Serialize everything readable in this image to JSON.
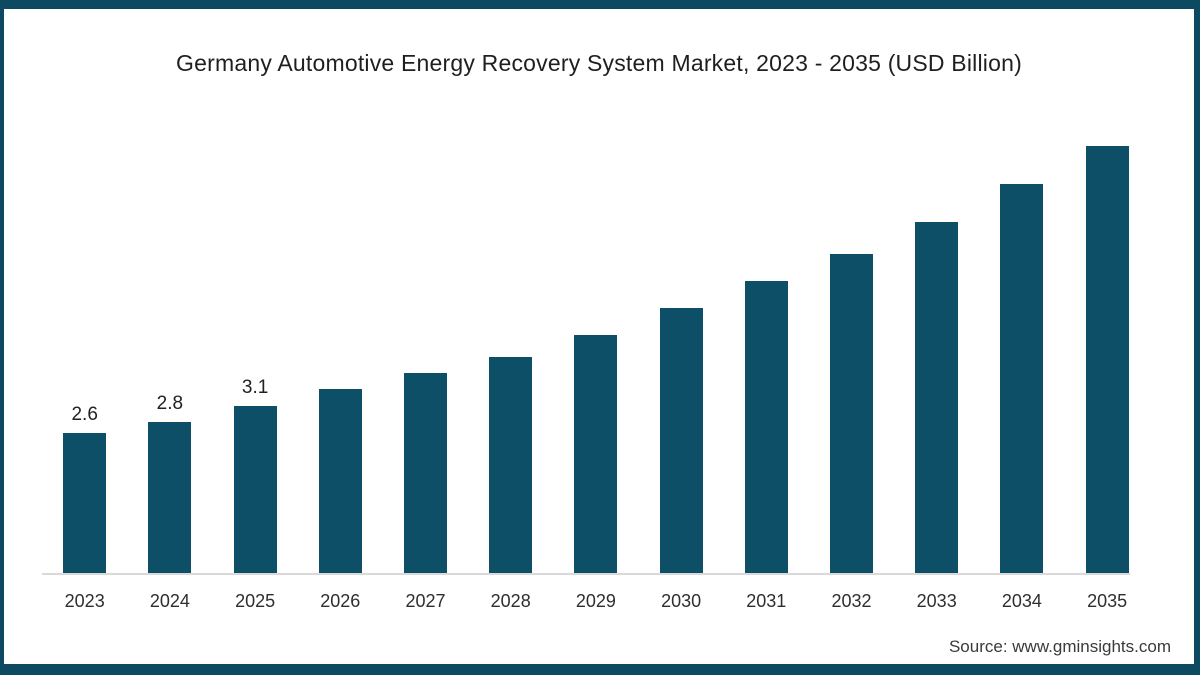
{
  "frame": {
    "border_color": "#0d4a61",
    "background_color": "#ffffff"
  },
  "chart_data": {
    "type": "bar",
    "title": "Germany Automotive Energy Recovery System Market, 2023 - 2035 (USD Billion)",
    "categories": [
      "2023",
      "2024",
      "2025",
      "2026",
      "2027",
      "2028",
      "2029",
      "2030",
      "2031",
      "2032",
      "2033",
      "2034",
      "2035"
    ],
    "values": [
      2.6,
      2.8,
      3.1,
      3.4,
      3.7,
      4.0,
      4.4,
      4.9,
      5.4,
      5.9,
      6.5,
      7.2,
      7.9
    ],
    "data_labels": [
      "2.6",
      "2.8",
      "3.1",
      "",
      "",
      "",
      "",
      "",
      "",
      "",
      "",
      "",
      ""
    ],
    "xlabel": "",
    "ylabel": "",
    "ylim": [
      0,
      8.8
    ],
    "grid": false,
    "legend_position": "none",
    "y_axis_visible": false,
    "bar_color": "#0d4f66",
    "axis_line_color": "#d9d9d9",
    "label_color": "#212121"
  },
  "footer": {
    "source": "Source: www.gminsights.com"
  }
}
